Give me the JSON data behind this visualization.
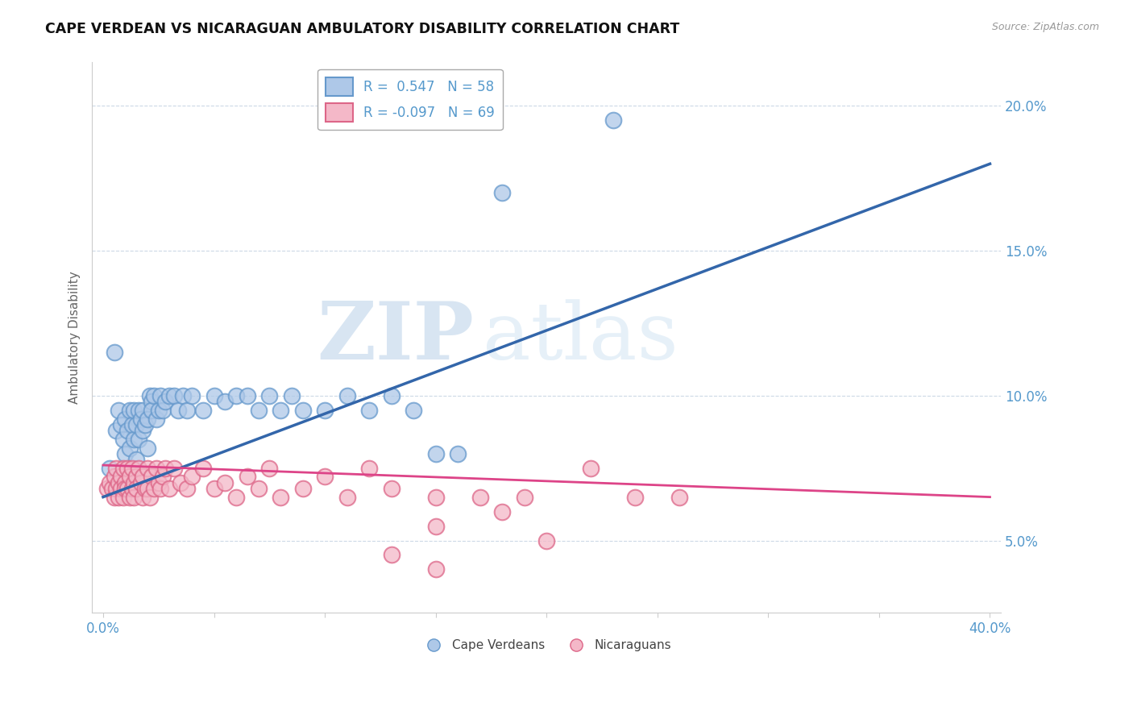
{
  "title": "CAPE VERDEAN VS NICARAGUAN AMBULATORY DISABILITY CORRELATION CHART",
  "source": "Source: ZipAtlas.com",
  "ylabel": "Ambulatory Disability",
  "xlim": [
    -0.005,
    0.405
  ],
  "ylim": [
    0.025,
    0.215
  ],
  "yticks": [
    0.05,
    0.1,
    0.15,
    0.2
  ],
  "ytick_labels": [
    "5.0%",
    "10.0%",
    "15.0%",
    "20.0%"
  ],
  "xtick_positions": [
    0.0,
    0.05,
    0.1,
    0.15,
    0.2,
    0.25,
    0.3,
    0.35,
    0.4
  ],
  "xtick_labels": [
    "0.0%",
    "",
    "",
    "",
    "",
    "",
    "",
    "",
    "40.0%"
  ],
  "blue_R": 0.547,
  "blue_N": 58,
  "pink_R": -0.097,
  "pink_N": 69,
  "blue_color": "#aec8e8",
  "blue_edge": "#6699cc",
  "pink_color": "#f4b8c8",
  "pink_edge": "#dd6688",
  "blue_line_color": "#3366aa",
  "pink_line_color": "#dd4488",
  "legend_label_blue": "Cape Verdeans",
  "legend_label_pink": "Nicaraguans",
  "watermark_zip": "ZIP",
  "watermark_atlas": "atlas",
  "tick_color": "#5599cc",
  "blue_scatter_x": [
    0.003,
    0.005,
    0.006,
    0.007,
    0.008,
    0.009,
    0.01,
    0.01,
    0.011,
    0.012,
    0.012,
    0.013,
    0.014,
    0.014,
    0.015,
    0.015,
    0.016,
    0.016,
    0.017,
    0.018,
    0.018,
    0.019,
    0.02,
    0.02,
    0.021,
    0.022,
    0.022,
    0.023,
    0.024,
    0.025,
    0.026,
    0.027,
    0.028,
    0.03,
    0.032,
    0.034,
    0.036,
    0.038,
    0.04,
    0.045,
    0.05,
    0.055,
    0.06,
    0.065,
    0.07,
    0.075,
    0.08,
    0.085,
    0.09,
    0.1,
    0.11,
    0.12,
    0.13,
    0.14,
    0.15,
    0.16,
    0.18,
    0.23
  ],
  "blue_scatter_y": [
    0.075,
    0.115,
    0.088,
    0.095,
    0.09,
    0.085,
    0.092,
    0.08,
    0.088,
    0.095,
    0.082,
    0.09,
    0.085,
    0.095,
    0.09,
    0.078,
    0.095,
    0.085,
    0.092,
    0.088,
    0.095,
    0.09,
    0.082,
    0.092,
    0.1,
    0.098,
    0.095,
    0.1,
    0.092,
    0.095,
    0.1,
    0.095,
    0.098,
    0.1,
    0.1,
    0.095,
    0.1,
    0.095,
    0.1,
    0.095,
    0.1,
    0.098,
    0.1,
    0.1,
    0.095,
    0.1,
    0.095,
    0.1,
    0.095,
    0.095,
    0.1,
    0.095,
    0.1,
    0.095,
    0.08,
    0.08,
    0.17,
    0.195
  ],
  "pink_scatter_x": [
    0.002,
    0.003,
    0.004,
    0.005,
    0.005,
    0.006,
    0.006,
    0.007,
    0.007,
    0.008,
    0.008,
    0.009,
    0.009,
    0.01,
    0.01,
    0.011,
    0.011,
    0.012,
    0.012,
    0.013,
    0.013,
    0.014,
    0.014,
    0.015,
    0.015,
    0.016,
    0.017,
    0.018,
    0.018,
    0.019,
    0.02,
    0.02,
    0.021,
    0.022,
    0.023,
    0.024,
    0.025,
    0.026,
    0.027,
    0.028,
    0.03,
    0.032,
    0.035,
    0.038,
    0.04,
    0.045,
    0.05,
    0.055,
    0.06,
    0.065,
    0.07,
    0.075,
    0.08,
    0.09,
    0.1,
    0.11,
    0.13,
    0.15,
    0.17,
    0.19,
    0.22,
    0.24,
    0.26,
    0.15,
    0.18,
    0.2,
    0.13,
    0.15,
    0.12
  ],
  "pink_scatter_y": [
    0.068,
    0.07,
    0.068,
    0.065,
    0.072,
    0.068,
    0.075,
    0.07,
    0.065,
    0.072,
    0.068,
    0.075,
    0.065,
    0.07,
    0.068,
    0.075,
    0.068,
    0.065,
    0.072,
    0.068,
    0.075,
    0.07,
    0.065,
    0.072,
    0.068,
    0.075,
    0.07,
    0.065,
    0.072,
    0.068,
    0.075,
    0.068,
    0.065,
    0.072,
    0.068,
    0.075,
    0.07,
    0.068,
    0.072,
    0.075,
    0.068,
    0.075,
    0.07,
    0.068,
    0.072,
    0.075,
    0.068,
    0.07,
    0.065,
    0.072,
    0.068,
    0.075,
    0.065,
    0.068,
    0.072,
    0.065,
    0.068,
    0.065,
    0.065,
    0.065,
    0.075,
    0.065,
    0.065,
    0.055,
    0.06,
    0.05,
    0.045,
    0.04,
    0.075
  ]
}
